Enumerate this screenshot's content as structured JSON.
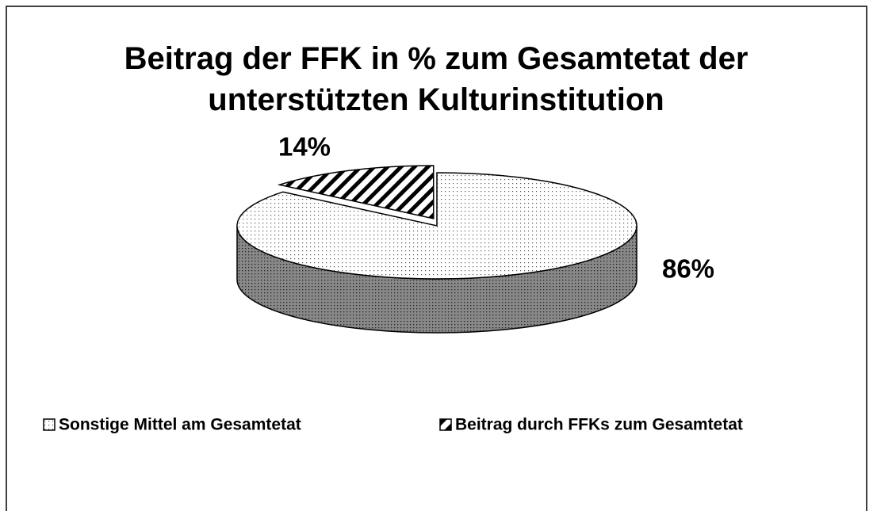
{
  "chart_data": {
    "type": "pie",
    "title": "Beitrag der FFK in % zum Gesamtetat der unterstützten Kulturinstitution",
    "categories": [
      "Sonstige Mittel am Gesamtetat",
      "Beitrag durch FFKs zum Gesamtetat"
    ],
    "values": [
      86,
      14
    ],
    "value_labels": [
      "86%",
      "14%"
    ],
    "patterns": [
      "dots",
      "hatch"
    ],
    "color": "#000000",
    "legend": "bottom"
  }
}
